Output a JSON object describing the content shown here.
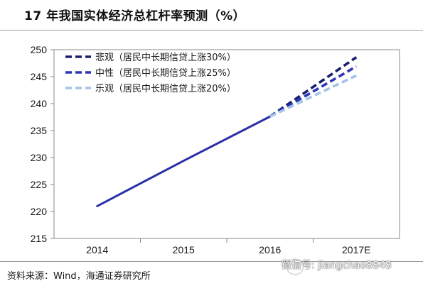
{
  "title": "17 年我国实体经济总杠杆率预测（%）",
  "source": "资料来源：Wind，海通证券研究所",
  "watermark": "微信号: jiangchao8848",
  "chart_data": {
    "type": "line",
    "categories": [
      "2014",
      "2015",
      "2016",
      "2017E"
    ],
    "ylim": [
      215,
      250
    ],
    "yticks": [
      215,
      220,
      225,
      230,
      235,
      240,
      245,
      250
    ],
    "grid": false,
    "legend_position": "top-left",
    "history": {
      "color": "#2b2fa6",
      "points": [
        [
          0,
          221.0
        ],
        [
          1,
          229.4
        ],
        [
          2,
          237.6
        ]
      ]
    },
    "series": [
      {
        "name": "悲观（居民中长期信贷上涨30%）",
        "color": "#18206e",
        "values": [
          null,
          null,
          237.6,
          248.6
        ]
      },
      {
        "name": "中性（居民中长期信贷上涨25%）",
        "color": "#2e35b8",
        "values": [
          null,
          null,
          237.6,
          246.9
        ]
      },
      {
        "name": "乐观（居民中长期信贷上涨20%）",
        "color": "#a3c4e8",
        "values": [
          null,
          null,
          237.6,
          245.2
        ]
      }
    ]
  }
}
